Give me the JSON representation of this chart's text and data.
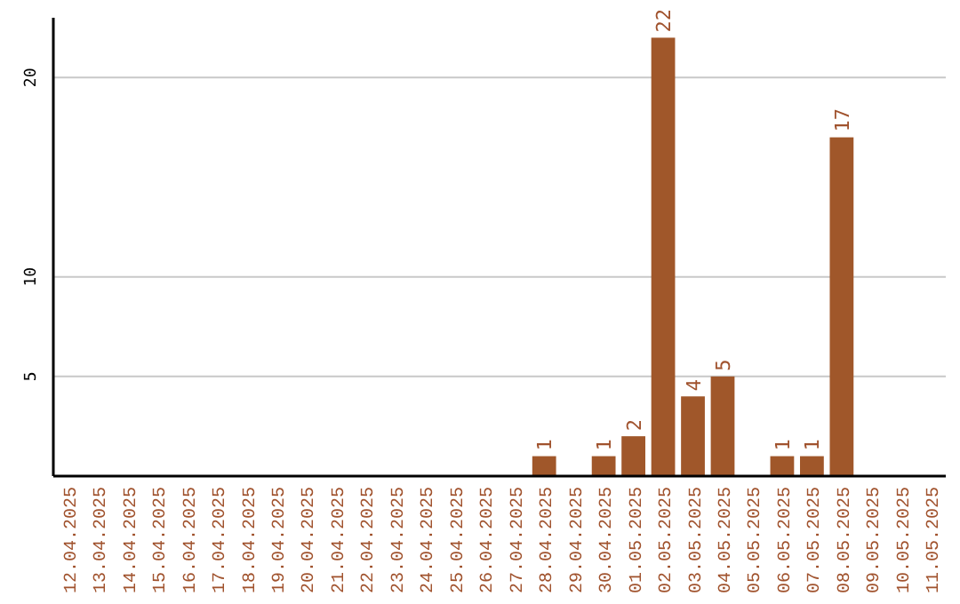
{
  "chart_data": {
    "type": "bar",
    "categories": [
      "12.04.2025",
      "13.04.2025",
      "14.04.2025",
      "15.04.2025",
      "16.04.2025",
      "17.04.2025",
      "18.04.2025",
      "19.04.2025",
      "20.04.2025",
      "21.04.2025",
      "22.04.2025",
      "23.04.2025",
      "24.04.2025",
      "25.04.2025",
      "26.04.2025",
      "27.04.2025",
      "28.04.2025",
      "29.04.2025",
      "30.04.2025",
      "01.05.2025",
      "02.05.2025",
      "03.05.2025",
      "04.05.2025",
      "05.05.2025",
      "06.05.2025",
      "07.05.2025",
      "08.05.2025",
      "09.05.2025",
      "10.05.2025",
      "11.05.2025"
    ],
    "values": [
      0,
      0,
      0,
      0,
      0,
      0,
      0,
      0,
      0,
      0,
      0,
      0,
      0,
      0,
      0,
      0,
      1,
      0,
      1,
      2,
      22,
      4,
      5,
      0,
      1,
      1,
      17,
      0,
      0,
      0
    ],
    "value_labels": [
      null,
      null,
      null,
      null,
      null,
      null,
      null,
      null,
      null,
      null,
      null,
      null,
      null,
      null,
      null,
      null,
      "1",
      null,
      "1",
      "2",
      "22",
      "4",
      "5",
      null,
      "1",
      "1",
      "17",
      null,
      null,
      null
    ],
    "color": "#a0572a",
    "ylim": [
      0,
      23
    ],
    "yticks": [
      5,
      10,
      20
    ],
    "grid": "y"
  }
}
